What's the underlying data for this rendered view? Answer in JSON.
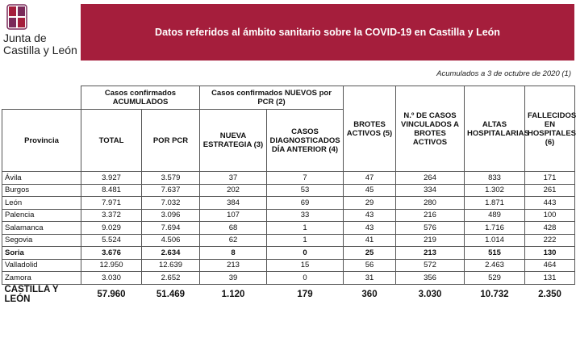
{
  "header": {
    "logo": [
      "Junta de",
      "Castilla y León"
    ],
    "title": "Datos referidos al ámbito sanitario sobre la COVID-19 en Castilla y León",
    "note": "Acumulados a 3 de octubre de 2020 (1)"
  },
  "table": {
    "groups": [
      "Casos confirmados ACUMULADOS",
      "Casos confirmados NUEVOS por PCR (2)"
    ],
    "columns": [
      "Provincia",
      "TOTAL",
      "POR PCR",
      "NUEVA ESTRATEGIA (3)",
      "CASOS DIAGNOSTICADOS DÍA ANTERIOR (4)",
      "BROTES ACTIVOS (5)",
      "N.º DE CASOS VINCULADOS A BROTES ACTIVOS",
      "ALTAS HOSPITALARIAS",
      "FALLECIDOS EN HOSPITALES (6)"
    ],
    "rows": [
      [
        "Ávila",
        "3.927",
        "3.579",
        "37",
        "7",
        "47",
        "264",
        "833",
        "171"
      ],
      [
        "Burgos",
        "8.481",
        "7.637",
        "202",
        "53",
        "45",
        "334",
        "1.302",
        "261"
      ],
      [
        "León",
        "7.971",
        "7.032",
        "384",
        "69",
        "29",
        "280",
        "1.871",
        "443"
      ],
      [
        "Palencia",
        "3.372",
        "3.096",
        "107",
        "33",
        "43",
        "216",
        "489",
        "100"
      ],
      [
        "Salamanca",
        "9.029",
        "7.694",
        "68",
        "1",
        "43",
        "576",
        "1.716",
        "428"
      ],
      [
        "Segovia",
        "5.524",
        "4.506",
        "62",
        "1",
        "41",
        "219",
        "1.014",
        "222"
      ],
      [
        "Soria",
        "3.676",
        "2.634",
        "8",
        "0",
        "25",
        "213",
        "515",
        "130"
      ],
      [
        "Valladolid",
        "12.950",
        "12.639",
        "213",
        "15",
        "56",
        "572",
        "2.463",
        "464"
      ],
      [
        "Zamora",
        "3.030",
        "2.652",
        "39",
        "0",
        "31",
        "356",
        "529",
        "131"
      ]
    ],
    "total": [
      "CASTILLA Y LEÓN",
      "57.960",
      "51.469",
      "1.120",
      "179",
      "360",
      "3.030",
      "10.732",
      "2.350"
    ]
  }
}
